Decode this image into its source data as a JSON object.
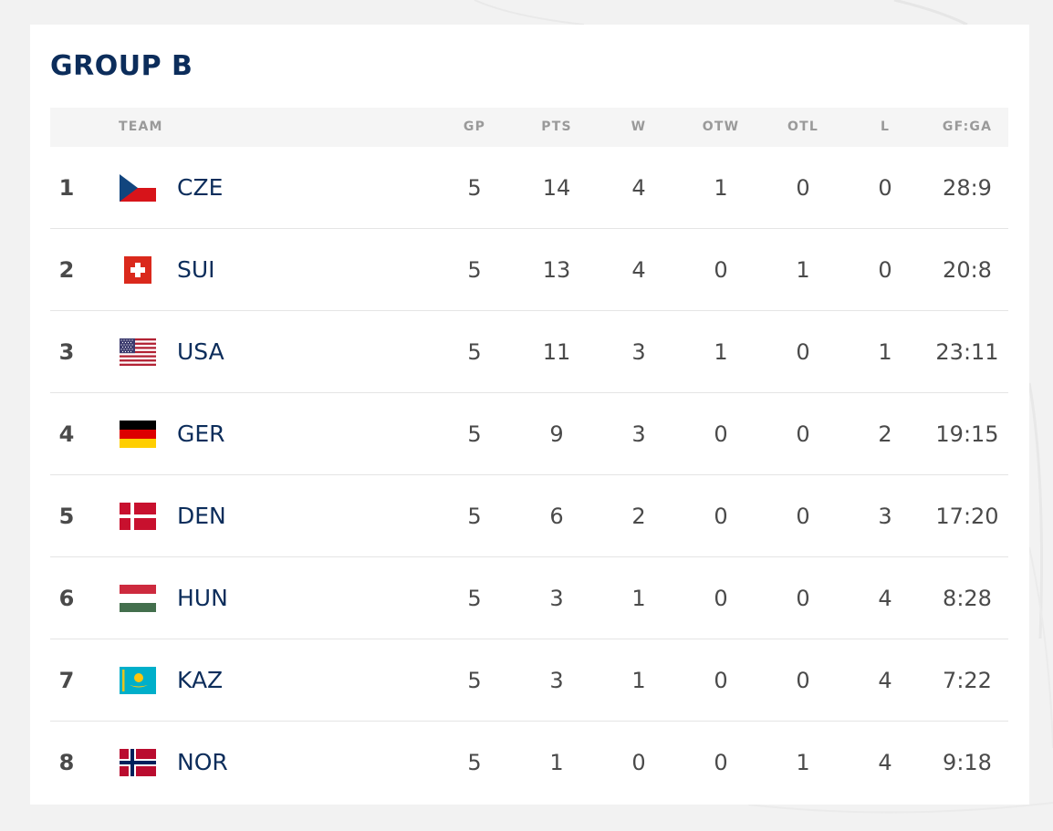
{
  "group": {
    "title": "GROUP B"
  },
  "headers": {
    "team": "TEAM",
    "gp": "GP",
    "pts": "PTS",
    "w": "W",
    "otw": "OTW",
    "otl": "OTL",
    "l": "L",
    "gfga": "GF:GA"
  },
  "colors": {
    "title": "#0c2d5b",
    "team_text": "#0c2d5b",
    "number_text": "#4a4a4a",
    "header_text": "#9a9a9a",
    "header_bg": "#f5f5f5"
  },
  "rows": [
    {
      "rank": "1",
      "team": "CZE",
      "flag": "flag-czech-icon",
      "gp": "5",
      "pts": "14",
      "w": "4",
      "otw": "1",
      "otl": "0",
      "l": "0",
      "gfga": "28:9"
    },
    {
      "rank": "2",
      "team": "SUI",
      "flag": "flag-swiss-icon",
      "gp": "5",
      "pts": "13",
      "w": "4",
      "otw": "0",
      "otl": "1",
      "l": "0",
      "gfga": "20:8"
    },
    {
      "rank": "3",
      "team": "USA",
      "flag": "flag-usa-icon",
      "gp": "5",
      "pts": "11",
      "w": "3",
      "otw": "1",
      "otl": "0",
      "l": "1",
      "gfga": "23:11"
    },
    {
      "rank": "4",
      "team": "GER",
      "flag": "flag-germany-icon",
      "gp": "5",
      "pts": "9",
      "w": "3",
      "otw": "0",
      "otl": "0",
      "l": "2",
      "gfga": "19:15"
    },
    {
      "rank": "5",
      "team": "DEN",
      "flag": "flag-denmark-icon",
      "gp": "5",
      "pts": "6",
      "w": "2",
      "otw": "0",
      "otl": "0",
      "l": "3",
      "gfga": "17:20"
    },
    {
      "rank": "6",
      "team": "HUN",
      "flag": "flag-hungary-icon",
      "gp": "5",
      "pts": "3",
      "w": "1",
      "otw": "0",
      "otl": "0",
      "l": "4",
      "gfga": "8:28"
    },
    {
      "rank": "7",
      "team": "KAZ",
      "flag": "flag-kazakhstan-icon",
      "gp": "5",
      "pts": "3",
      "w": "1",
      "otw": "0",
      "otl": "0",
      "l": "4",
      "gfga": "7:22"
    },
    {
      "rank": "8",
      "team": "NOR",
      "flag": "flag-norway-icon",
      "gp": "5",
      "pts": "1",
      "w": "0",
      "otw": "0",
      "otl": "1",
      "l": "4",
      "gfga": "9:18"
    }
  ]
}
